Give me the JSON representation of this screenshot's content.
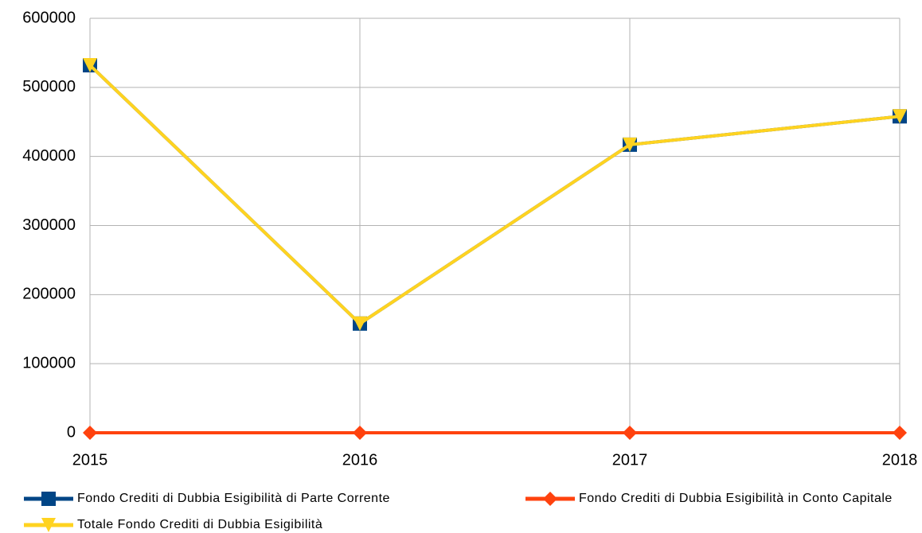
{
  "chart_data": {
    "type": "line",
    "categories": [
      "2015",
      "2016",
      "2017",
      "2018"
    ],
    "series": [
      {
        "name": "Fondo Crediti di Dubbia Esigibilità di Parte Corrente",
        "color": "#004586",
        "marker": "square",
        "values": [
          532000,
          158000,
          417000,
          458000
        ]
      },
      {
        "name": "Fondo Crediti di Dubbia Esigibilità in Conto Capitale",
        "color": "#ff420e",
        "marker": "diamond",
        "values": [
          0,
          0,
          0,
          0
        ]
      },
      {
        "name": "Totale Fondo Crediti di Dubbia Esigibilità",
        "color": "#ffd320",
        "marker": "triangle-down",
        "values": [
          532000,
          158000,
          417000,
          458000
        ]
      }
    ],
    "ylim": [
      0,
      600000
    ],
    "yticks": [
      0,
      100000,
      200000,
      300000,
      400000,
      500000,
      600000
    ],
    "grid": true,
    "legend": "bottom"
  }
}
